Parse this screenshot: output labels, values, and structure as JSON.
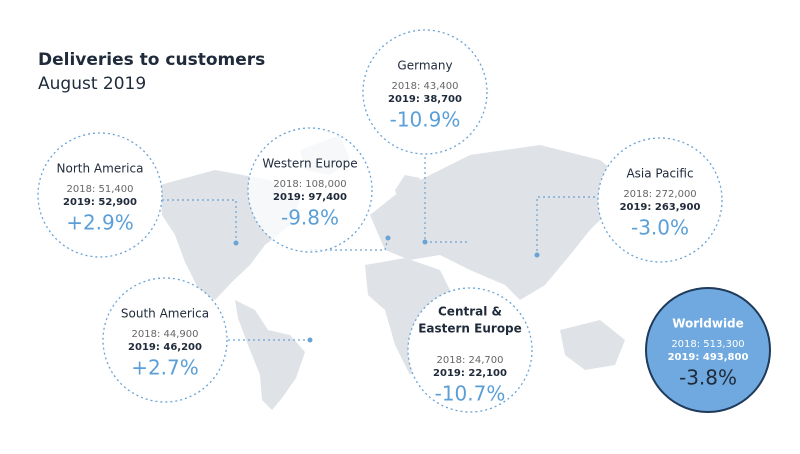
{
  "header": {
    "title": "Deliveries to customers",
    "subtitle": "August 2019"
  },
  "regions": [
    {
      "name": "North America",
      "line2018": "2018: 51,400",
      "line2019": "2019: 52,900",
      "change": "+2.9%"
    },
    {
      "name": "Western Europe",
      "line2018": "2018: 108,000",
      "line2019": "2019:  97,400",
      "change": "-9.8%"
    },
    {
      "name": "Germany",
      "line2018": "2018: 43,400",
      "line2019": "2019: 38,700",
      "change": "-10.9%"
    },
    {
      "name": "Asia Pacific",
      "line2018": "2018: 272,000",
      "line2019": "2019: 263,900",
      "change": "-3.0%"
    },
    {
      "name": "South America",
      "line2018": "2018: 44,900",
      "line2019": "2019: 46,200",
      "change": "+2.7%"
    },
    {
      "name": [
        "Central &",
        "Eastern Europe"
      ],
      "line2018": "2018: 24,700",
      "line2019": "2019: 22,100",
      "change": "-10.7%"
    },
    {
      "name": "Worldwide",
      "line2018": "2018: 513,300",
      "line2019": "2019: 493,800",
      "change": "-3.8%"
    }
  ]
}
